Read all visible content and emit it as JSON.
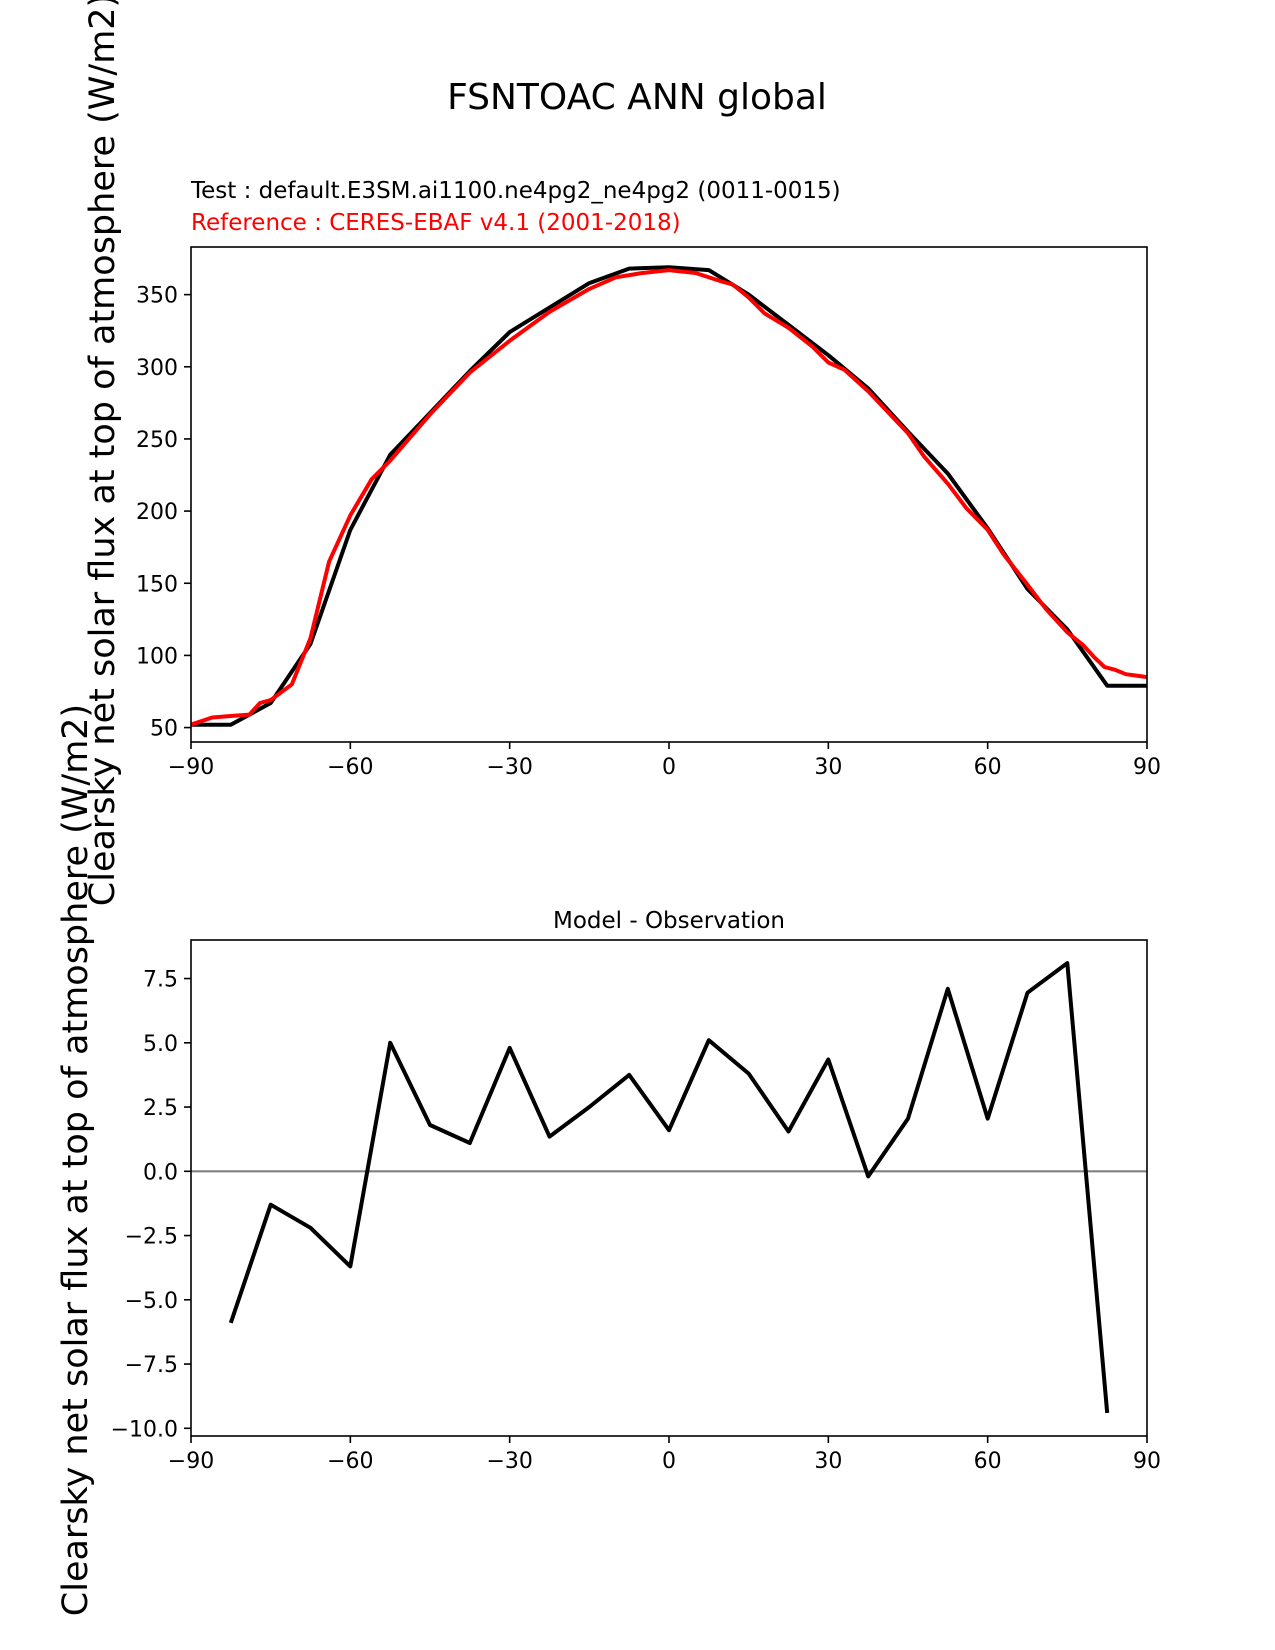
{
  "suptitle": "FSNTOAC ANN global",
  "colors": {
    "test": "#000000",
    "reference": "#ff0000",
    "zero_line": "#808080",
    "axes": "#000000"
  },
  "chart_data": [
    {
      "type": "line",
      "test_label": "Test : default.E3SM.ai1100.ne4pg2_ne4pg2 (0011-0015)",
      "reference_label": "Reference : CERES-EBAF v4.1 (2001-2018)",
      "ylabel": "Clearsky net solar flux at top of atmosphere (W/m2)",
      "xlim": [
        -90,
        90
      ],
      "ylim": [
        40,
        383
      ],
      "xticks": [
        -90,
        -60,
        -30,
        0,
        30,
        60,
        90
      ],
      "yticks": [
        50,
        100,
        150,
        200,
        250,
        300,
        350
      ],
      "series": [
        {
          "role": "test",
          "x": [
            -90,
            -82.5,
            -75,
            -67.5,
            -60,
            -52.5,
            -45,
            -37.5,
            -30,
            -22.5,
            -15,
            -7.5,
            0,
            7.5,
            15,
            22.5,
            30,
            37.5,
            45,
            52.5,
            60,
            67.5,
            75,
            82.5,
            90
          ],
          "y": [
            52,
            52,
            67,
            108,
            187,
            239,
            268,
            297,
            324,
            341,
            358,
            368,
            369,
            367,
            350,
            329,
            308,
            285,
            255,
            226,
            188,
            146,
            118,
            79,
            79
          ]
        },
        {
          "role": "reference",
          "x": [
            -90,
            -86,
            -82.5,
            -79,
            -77,
            -75,
            -71,
            -67.5,
            -64,
            -60,
            -56,
            -52.5,
            -45,
            -37.5,
            -30,
            -22.5,
            -15,
            -10,
            -5,
            0,
            5,
            10,
            12,
            15,
            18,
            22.5,
            27,
            30,
            33,
            37.5,
            45,
            48,
            52.5,
            56,
            60,
            63,
            67.5,
            71,
            75,
            78,
            80,
            82,
            84,
            86,
            88,
            90
          ],
          "y": [
            52,
            57,
            58,
            59,
            67,
            69,
            80,
            112,
            165,
            197,
            222,
            235,
            267,
            296,
            318,
            338,
            354,
            362,
            365,
            367,
            365,
            359,
            357,
            348,
            337,
            327,
            314,
            303,
            298,
            283,
            254,
            238,
            219,
            202,
            187,
            170,
            149,
            132,
            116,
            107,
            99,
            92,
            90,
            87,
            86,
            85
          ]
        }
      ]
    },
    {
      "type": "line",
      "title": "Model - Observation",
      "ylabel": "Clearsky net solar flux at top of atmosphere (W/m2)",
      "xlim": [
        -90,
        90
      ],
      "ylim": [
        -10.3,
        9.0
      ],
      "xticks": [
        -90,
        -60,
        -30,
        0,
        30,
        60,
        90
      ],
      "yticks": [
        -10.0,
        -7.5,
        -5.0,
        -2.5,
        0.0,
        2.5,
        5.0,
        7.5
      ],
      "ytick_labels": [
        "−10.0",
        "−7.5",
        "−5.0",
        "−2.5",
        "0.0",
        "2.5",
        "5.0",
        "7.5"
      ],
      "zero_line": 0,
      "series": [
        {
          "role": "difference",
          "x": [
            -82.5,
            -75,
            -67.5,
            -60,
            -52.5,
            -45,
            -37.5,
            -30,
            -22.5,
            -15,
            -7.5,
            0,
            7.5,
            15,
            22.5,
            30,
            37.5,
            45,
            52.5,
            60,
            67.5,
            75,
            82.5
          ],
          "y": [
            -5.9,
            -1.3,
            -2.2,
            -3.7,
            5.0,
            1.8,
            1.1,
            4.8,
            1.35,
            2.5,
            3.75,
            1.6,
            5.1,
            3.8,
            1.55,
            4.35,
            -0.2,
            2.05,
            7.1,
            2.05,
            6.95,
            8.1,
            -9.4
          ]
        }
      ]
    }
  ]
}
